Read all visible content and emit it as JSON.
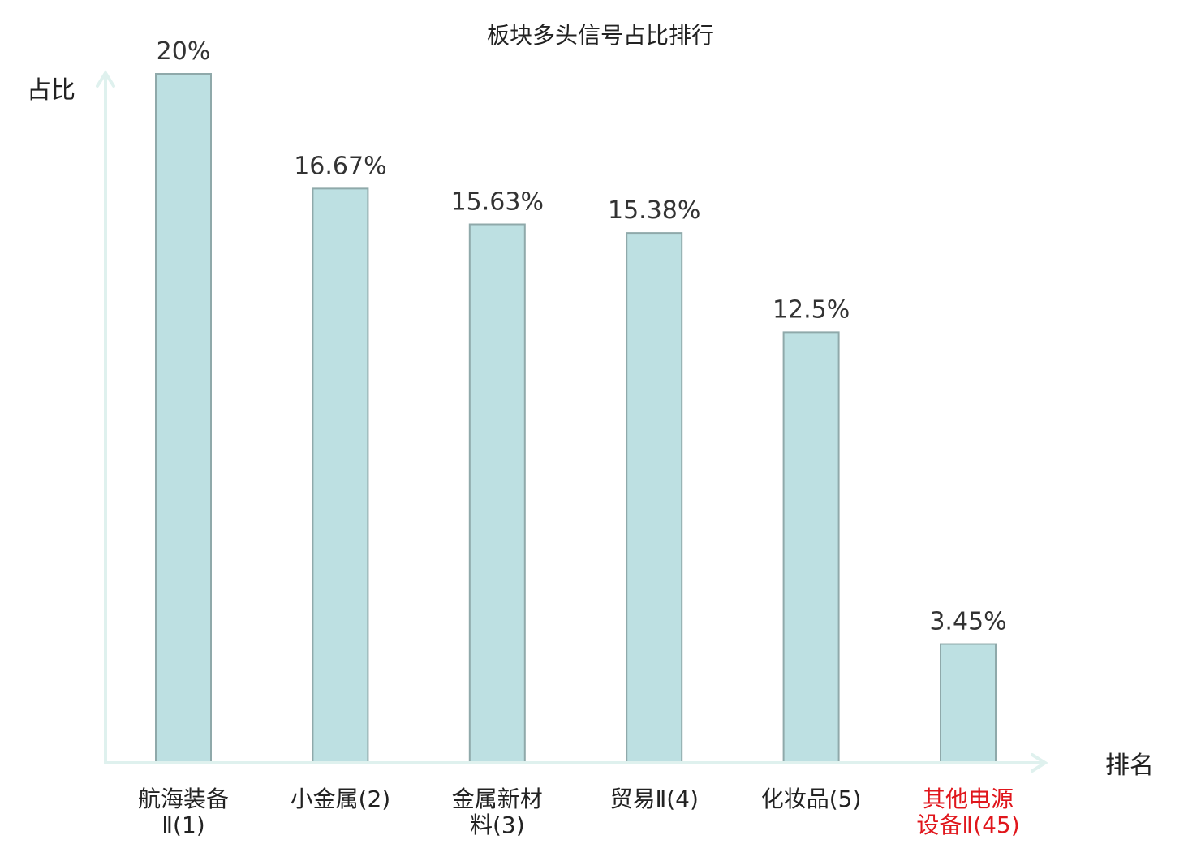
{
  "chart_data": {
    "type": "bar",
    "title": "板块多头信号占比排行",
    "ylabel": "占比",
    "xlabel": "排名",
    "ylim": [
      0,
      20
    ],
    "grid": false,
    "categories": [
      [
        "航海装备",
        "Ⅱ(1)"
      ],
      [
        "小金属(2)"
      ],
      [
        "金属新材",
        "料(3)"
      ],
      [
        "贸易Ⅱ(4)"
      ],
      [
        "化妆品(5)"
      ],
      [
        "其他电源",
        "设备Ⅱ(45)"
      ]
    ],
    "values": [
      20,
      16.67,
      15.63,
      15.38,
      12.5,
      3.45
    ],
    "value_labels": [
      "20%",
      "16.67%",
      "15.63%",
      "15.38%",
      "12.5%",
      "3.45%"
    ],
    "highlight_index": 5,
    "colors": {
      "bar_fill": "#bde0e2",
      "bar_stroke": "#8fa9aa",
      "axis": "#dff1ee",
      "highlight_text": "#e0161c"
    }
  }
}
